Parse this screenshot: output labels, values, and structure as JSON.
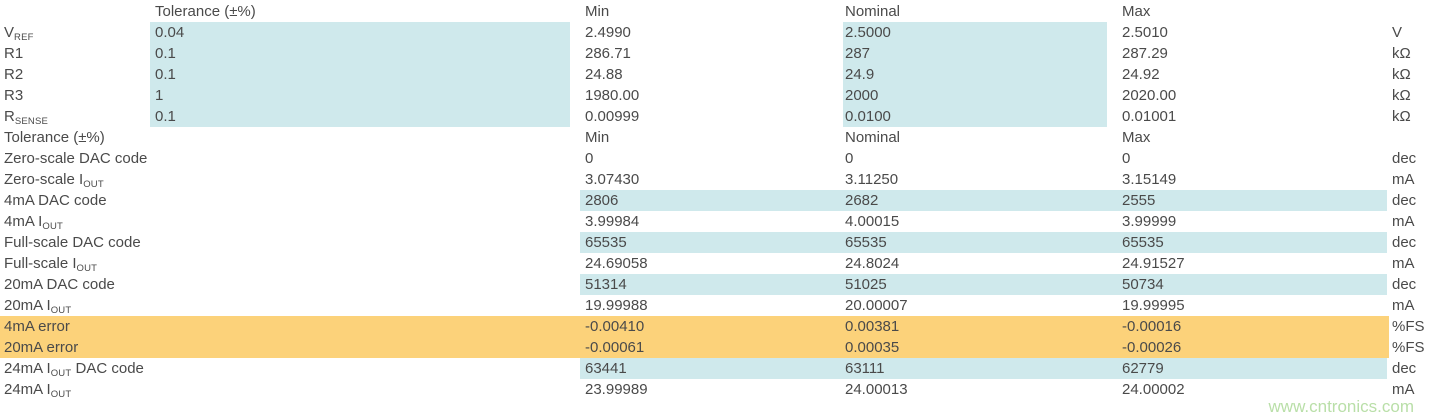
{
  "colors": {
    "background": "#ffffff",
    "text": "#4a4a4a",
    "highlight_cyan": "#cfe9ec",
    "highlight_orange": "#fcd27a",
    "watermark_green": "#b9dfa8"
  },
  "watermark": "www.cntronics.com",
  "components_table": {
    "headers": {
      "tolerance": "Tolerance (±%)",
      "min": "Min",
      "nominal": "Nominal",
      "max": "Max"
    },
    "rows": [
      {
        "label": "V",
        "sub": "REF",
        "tolerance": "0.04",
        "min": "2.4990",
        "nominal": "2.5000",
        "max": "2.5010",
        "unit": "V"
      },
      {
        "label": "R1",
        "sub": "",
        "tolerance": "0.1",
        "min": "286.71",
        "nominal": "287",
        "max": "287.29",
        "unit": "kΩ"
      },
      {
        "label": "R2",
        "sub": "",
        "tolerance": "0.1",
        "min": "24.88",
        "nominal": "24.9",
        "max": "24.92",
        "unit": "kΩ"
      },
      {
        "label": "R3",
        "sub": "",
        "tolerance": "1",
        "min": "1980.00",
        "nominal": "2000",
        "max": "2020.00",
        "unit": "kΩ"
      },
      {
        "label": "R",
        "sub": "SENSE",
        "tolerance": "0.1",
        "min": "0.00999",
        "nominal": "0.0100",
        "max": "0.01001",
        "unit": "kΩ"
      }
    ]
  },
  "results_table": {
    "headers": {
      "label": "Tolerance (±%)",
      "min": "Min",
      "nominal": "Nominal",
      "max": "Max"
    },
    "rows": [
      {
        "pre": "Zero-scale DAC code",
        "sub": "",
        "post": "",
        "min": "0",
        "nominal": "0",
        "max": "0",
        "unit": "dec",
        "highlight": ""
      },
      {
        "pre": "Zero-scale I",
        "sub": "OUT",
        "post": "",
        "min": "3.07430",
        "nominal": "3.11250",
        "max": "3.15149",
        "unit": "mA",
        "highlight": ""
      },
      {
        "pre": "4mA DAC code",
        "sub": "",
        "post": "",
        "min": "2806",
        "nominal": "2682",
        "max": "2555",
        "unit": "dec",
        "highlight": "cyan"
      },
      {
        "pre": "4mA I",
        "sub": "OUT",
        "post": "",
        "min": "3.99984",
        "nominal": "4.00015",
        "max": "3.99999",
        "unit": "mA",
        "highlight": ""
      },
      {
        "pre": "Full-scale DAC code",
        "sub": "",
        "post": "",
        "min": "65535",
        "nominal": "65535",
        "max": "65535",
        "unit": "dec",
        "highlight": "cyan"
      },
      {
        "pre": "Full-scale I",
        "sub": "OUT",
        "post": "",
        "min": "24.69058",
        "nominal": "24.8024",
        "max": "24.91527",
        "unit": "mA",
        "highlight": ""
      },
      {
        "pre": "20mA DAC code",
        "sub": "",
        "post": "",
        "min": "51314",
        "nominal": "51025",
        "max": "50734",
        "unit": "dec",
        "highlight": "cyan"
      },
      {
        "pre": "20mA I",
        "sub": "OUT",
        "post": "",
        "min": "19.99988",
        "nominal": "20.00007",
        "max": "19.99995",
        "unit": "mA",
        "highlight": ""
      },
      {
        "pre": "4mA error",
        "sub": "",
        "post": "",
        "min": "-0.00410",
        "nominal": "0.00381",
        "max": "-0.00016",
        "unit": "%FS",
        "highlight": "orange"
      },
      {
        "pre": "20mA error",
        "sub": "",
        "post": "",
        "min": "-0.00061",
        "nominal": "0.00035",
        "max": "-0.00026",
        "unit": "%FS",
        "highlight": "orange"
      },
      {
        "pre": "24mA I",
        "sub": "OUT",
        "post": " DAC code",
        "min": "63441",
        "nominal": "63111",
        "max": "62779",
        "unit": "dec",
        "highlight": "cyan"
      },
      {
        "pre": "24mA I",
        "sub": "OUT",
        "post": "",
        "min": "23.99989",
        "nominal": "24.00013",
        "max": "24.00002",
        "unit": "mA",
        "highlight": ""
      }
    ]
  }
}
